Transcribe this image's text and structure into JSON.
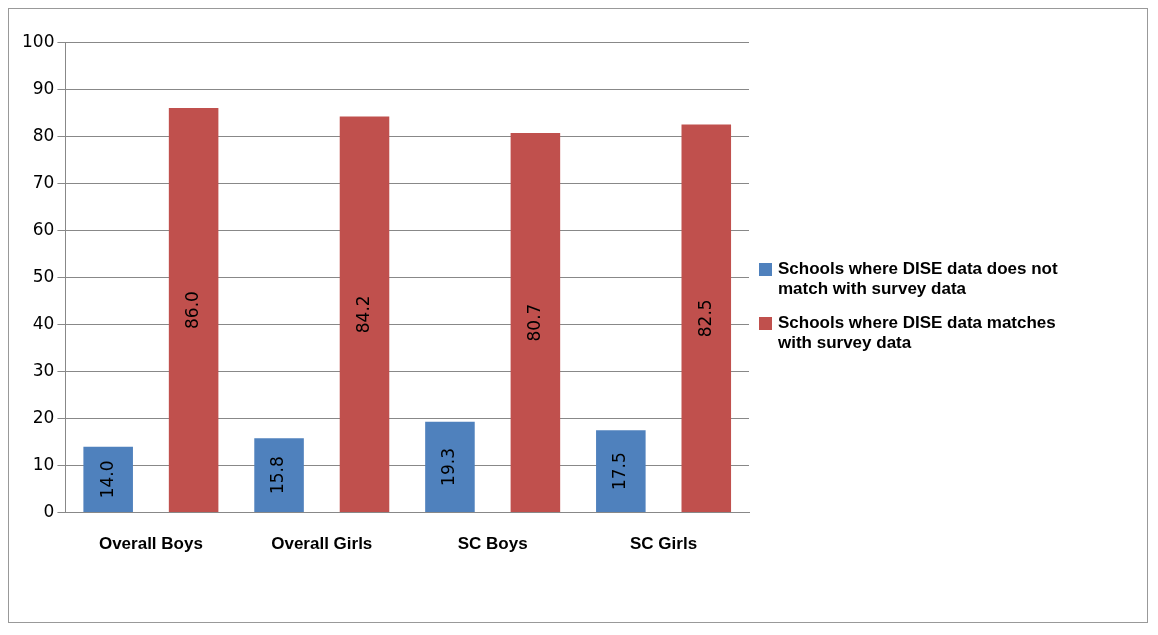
{
  "chart_data": {
    "type": "bar",
    "categories": [
      "Overall Boys",
      "Overall Girls",
      "SC Boys",
      "SC Girls"
    ],
    "series": [
      {
        "name": "Schools where  DISE data does not match with survey data",
        "color": "#4f81bd",
        "values": [
          14.0,
          15.8,
          19.3,
          17.5
        ],
        "value_labels": [
          "14.0",
          "15.8",
          "19.3",
          "17.5"
        ]
      },
      {
        "name": "Schools where DISE data matches with survey data",
        "color": "#c0504d",
        "values": [
          86.0,
          84.2,
          80.7,
          82.5
        ],
        "value_labels": [
          "86.0",
          "84.2",
          "80.7",
          "82.5"
        ]
      }
    ],
    "ylim": [
      0,
      100
    ],
    "yticks": [
      0,
      10,
      20,
      30,
      40,
      50,
      60,
      70,
      80,
      90,
      100
    ],
    "grid": "y",
    "legend": "right"
  }
}
